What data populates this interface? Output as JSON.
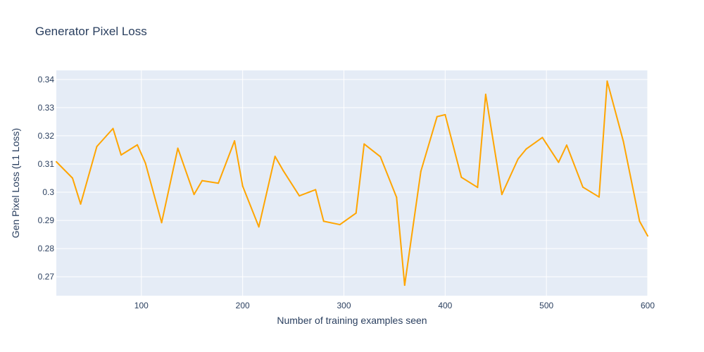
{
  "chart_data": {
    "type": "line",
    "title": "Generator Pixel Loss",
    "xlabel": "Number of training examples seen",
    "ylabel": "Gen Pixel Loss (L1 Loss)",
    "xlim": [
      16,
      600
    ],
    "ylim": [
      0.2633,
      0.3432
    ],
    "x_ticks": [
      100,
      200,
      300,
      400,
      500,
      600
    ],
    "y_ticks": [
      0.27,
      0.28,
      0.29,
      0.3,
      0.31,
      0.32,
      0.33,
      0.34
    ],
    "y_tick_labels": [
      "0.27",
      "0.28",
      "0.29",
      "0.3",
      "0.31",
      "0.32",
      "0.33",
      "0.34"
    ],
    "grid": true,
    "line_color": "#ffa500",
    "plot_bgcolor": "#e5ecf6",
    "series": [
      {
        "x": [
          16,
          32,
          40,
          56,
          72,
          80,
          96,
          104,
          120,
          136,
          152,
          160,
          176,
          192,
          200,
          216,
          232,
          240,
          256,
          272,
          280,
          296,
          312,
          320,
          336,
          352,
          360,
          376,
          392,
          400,
          416,
          432,
          440,
          456,
          472,
          480,
          496,
          512,
          520,
          536,
          552,
          560,
          576,
          592,
          600
        ],
        "y": [
          0.3108,
          0.305,
          0.2958,
          0.3162,
          0.3226,
          0.3132,
          0.3168,
          0.3103,
          0.2892,
          0.3156,
          0.2992,
          0.3041,
          0.3032,
          0.3182,
          0.3022,
          0.2877,
          0.3127,
          0.3077,
          0.2987,
          0.3009,
          0.2897,
          0.2885,
          0.2926,
          0.3171,
          0.3126,
          0.2982,
          0.267,
          0.3074,
          0.3268,
          0.3275,
          0.3053,
          0.3017,
          0.3347,
          0.2992,
          0.3118,
          0.3153,
          0.3194,
          0.3106,
          0.3167,
          0.3018,
          0.2983,
          0.3394,
          0.318,
          0.2897,
          0.2845
        ]
      }
    ]
  }
}
